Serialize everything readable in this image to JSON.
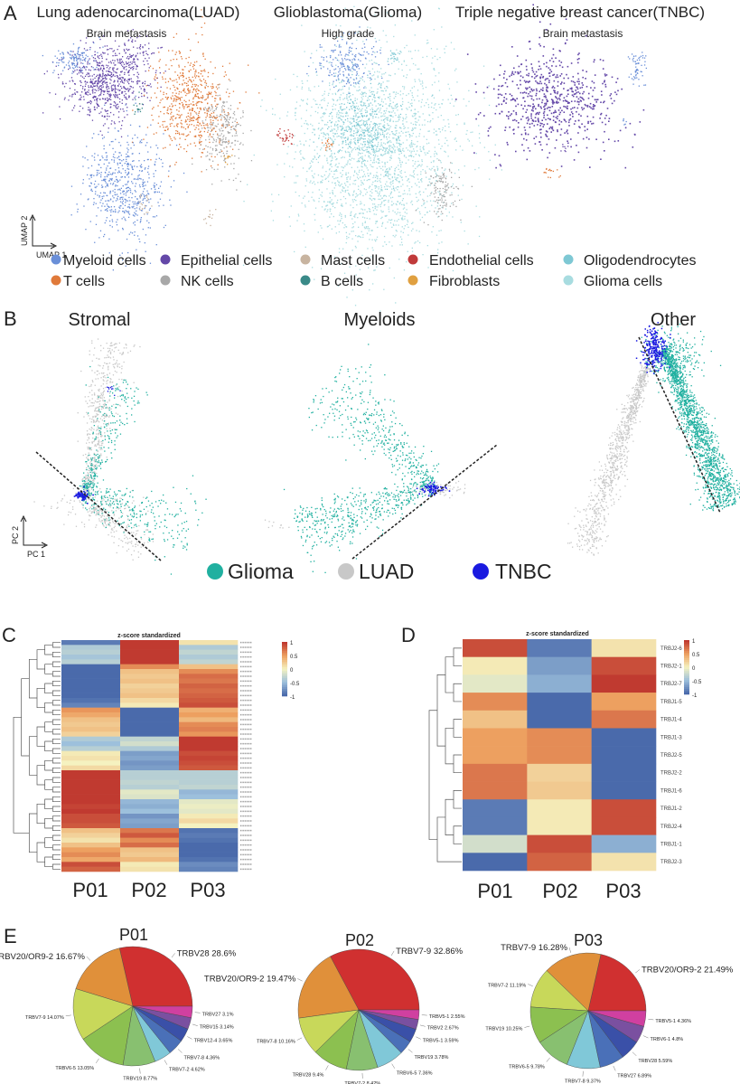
{
  "panelA": {
    "label": "A",
    "titles": [
      {
        "title": "Lung adenocarcinoma(LUAD)",
        "subtitle": "Brain metastasis"
      },
      {
        "title": "Glioblastoma(Glioma)",
        "subtitle": "High grade"
      },
      {
        "title": "Triple negative breast cancer(TNBC)",
        "subtitle": "Brain metastasis"
      }
    ],
    "axis_x": "UMAP 1",
    "axis_y": "UMAP 2",
    "legend": [
      {
        "label": "Myeloid cells",
        "color": "#6a8fd8"
      },
      {
        "label": "Epithelial cells",
        "color": "#6448a8"
      },
      {
        "label": "Mast cells",
        "color": "#c8b4a0"
      },
      {
        "label": "Endothelial cells",
        "color": "#c03a3a"
      },
      {
        "label": "Oligodendrocytes",
        "color": "#7ec8d4"
      },
      {
        "label": "T cells",
        "color": "#e07a3a"
      },
      {
        "label": "NK cells",
        "color": "#a8a8a8"
      },
      {
        "label": "B cells",
        "color": "#3a8a88"
      },
      {
        "label": "Fibroblasts",
        "color": "#e0a040"
      },
      {
        "label": "Glioma cells",
        "color": "#a8dce0"
      }
    ]
  },
  "panelB": {
    "label": "B",
    "titles": [
      "Stromal",
      "Myeloids",
      "Other"
    ],
    "axis_x": "PC 1",
    "axis_y": "PC 2",
    "legend": [
      {
        "label": "Glioma",
        "color": "#20b0a0"
      },
      {
        "label": "LUAD",
        "color": "#c8c8c8"
      },
      {
        "label": "TNBC",
        "color": "#1a1ae0"
      }
    ]
  },
  "chart_data": [
    {
      "panel": "C",
      "type": "heatmap",
      "title": "z-score standardized",
      "columns": [
        "P01",
        "P02",
        "P03"
      ],
      "colorbar_ticks": [
        "1",
        "0.5",
        "0",
        "-0.5",
        "-1"
      ],
      "values": [
        [
          -0.9,
          1,
          0.1
        ],
        [
          -0.4,
          1,
          -0.4
        ],
        [
          -0.35,
          1,
          -0.3
        ],
        [
          -0.45,
          1,
          -0.4
        ],
        [
          -0.35,
          1,
          -0.3
        ],
        [
          -1,
          0.6,
          0.3
        ],
        [
          -1,
          0.3,
          0.6
        ],
        [
          -1,
          0.25,
          0.75
        ],
        [
          -1,
          0.3,
          0.7
        ],
        [
          -1,
          0.2,
          0.8
        ],
        [
          -1,
          0.25,
          0.75
        ],
        [
          -1,
          0.3,
          0.8
        ],
        [
          -0.95,
          0.15,
          0.85
        ],
        [
          -0.85,
          0.05,
          0.9
        ],
        [
          0.55,
          -1,
          0.4
        ],
        [
          0.45,
          -1,
          0.5
        ],
        [
          0.3,
          -1,
          0.35
        ],
        [
          0.25,
          -1,
          0.6
        ],
        [
          0.3,
          -1,
          0.65
        ],
        [
          0.2,
          -1,
          0.55
        ],
        [
          -0.4,
          -0.3,
          1
        ],
        [
          -0.5,
          -0.2,
          1
        ],
        [
          -0.35,
          -0.4,
          1
        ],
        [
          0.05,
          -0.7,
          0.9
        ],
        [
          0.1,
          -0.65,
          0.95
        ],
        [
          0.0,
          -0.75,
          0.9
        ],
        [
          0.15,
          -0.7,
          0.85
        ],
        [
          1,
          -0.35,
          -0.35
        ],
        [
          1,
          -0.35,
          -0.35
        ],
        [
          1,
          -0.3,
          -0.35
        ],
        [
          1,
          -0.35,
          -0.3
        ],
        [
          1,
          -0.1,
          -0.55
        ],
        [
          1,
          -0.15,
          -0.5
        ],
        [
          1,
          -0.55,
          -0.1
        ],
        [
          0.95,
          -0.6,
          -0.05
        ],
        [
          1,
          -0.5,
          -0.1
        ],
        [
          0.9,
          -0.75,
          0.05
        ],
        [
          0.9,
          -0.65,
          0.15
        ],
        [
          0.85,
          -0.7,
          0.0
        ],
        [
          0.3,
          0.7,
          -0.95
        ],
        [
          0.2,
          0.85,
          -0.9
        ],
        [
          0.1,
          0.6,
          -0.95
        ],
        [
          0.3,
          0.75,
          -1
        ],
        [
          0.5,
          0.3,
          -1
        ],
        [
          0.6,
          0.25,
          -1
        ],
        [
          0.45,
          0.35,
          -0.95
        ],
        [
          0.9,
          0.05,
          -0.8
        ],
        [
          0.8,
          0.1,
          -0.85
        ]
      ]
    },
    {
      "panel": "D",
      "type": "heatmap",
      "title": "z-score standardized",
      "columns": [
        "P01",
        "P02",
        "P03"
      ],
      "rows": [
        "TRBJ2-6",
        "TRBJ2-1",
        "TRBJ2-7",
        "TRBJ1-5",
        "TRBJ1-4",
        "TRBJ1-3",
        "TRBJ2-5",
        "TRBJ2-2",
        "TRBJ1-6",
        "TRBJ1-2",
        "TRBJ2-4",
        "TRBJ1-1",
        "TRBJ2-3"
      ],
      "colorbar_ticks": [
        "1",
        "0.5",
        "0",
        "-0.5",
        "-1"
      ],
      "values": [
        [
          0.9,
          -0.9,
          0.1
        ],
        [
          0.05,
          -0.7,
          0.9
        ],
        [
          -0.1,
          -0.6,
          1
        ],
        [
          0.6,
          -1,
          0.5
        ],
        [
          0.3,
          -1,
          0.7
        ],
        [
          0.5,
          0.6,
          -1
        ],
        [
          0.5,
          0.6,
          -1
        ],
        [
          0.7,
          0.2,
          -1
        ],
        [
          0.7,
          0.25,
          -1
        ],
        [
          -0.9,
          0.05,
          0.9
        ],
        [
          -0.9,
          0.05,
          0.9
        ],
        [
          -0.2,
          0.9,
          -0.6
        ],
        [
          -1,
          0.8,
          0.1
        ]
      ]
    },
    {
      "panel": "E",
      "type": "pie",
      "title": "P01",
      "slices": [
        {
          "label": "TRBV28",
          "value": 28.6
        },
        {
          "label": "TRBV20/OR9-2",
          "value": 16.67
        },
        {
          "label": "TRBV7-9",
          "value": 14.07
        },
        {
          "label": "TRBV6-5",
          "value": 13.05
        },
        {
          "label": "TRBV19",
          "value": 8.77
        },
        {
          "label": "TRBV7-2",
          "value": 4.62
        },
        {
          "label": "TRBV7-8",
          "value": 4.36
        },
        {
          "label": "TRBV12-4",
          "value": 3.65
        },
        {
          "label": "TRBV15",
          "value": 3.14
        },
        {
          "label": "TRBV27",
          "value": 3.1
        }
      ]
    },
    {
      "panel": "E",
      "type": "pie",
      "title": "P02",
      "slices": [
        {
          "label": "TRBV7-9",
          "value": 32.86
        },
        {
          "label": "TRBV20/OR9-2",
          "value": 19.47
        },
        {
          "label": "TRBV7-8",
          "value": 10.16
        },
        {
          "label": "TRBV28",
          "value": 9.4
        },
        {
          "label": "TRBV7-2",
          "value": 8.42
        },
        {
          "label": "TRBV6-5",
          "value": 7.36
        },
        {
          "label": "TRBV19",
          "value": 3.78
        },
        {
          "label": "TRBV5-1",
          "value": 3.59
        },
        {
          "label": "TRBV2",
          "value": 2.67
        },
        {
          "label": "TRBV5-1",
          "value": 2.55
        }
      ]
    },
    {
      "panel": "E",
      "type": "pie",
      "title": "P03",
      "slices": [
        {
          "label": "TRBV20/OR9-2",
          "value": 21.49
        },
        {
          "label": "TRBV7-9",
          "value": 16.28
        },
        {
          "label": "TRBV7-2",
          "value": 11.19
        },
        {
          "label": "TRBV19",
          "value": 10.25
        },
        {
          "label": "TRBV6-5",
          "value": 9.78
        },
        {
          "label": "TRBV7-8",
          "value": 9.37
        },
        {
          "label": "TRBV27",
          "value": 6.89
        },
        {
          "label": "TRBV28",
          "value": 5.59
        },
        {
          "label": "TRBV6-1",
          "value": 4.8
        },
        {
          "label": "TRBV5-1",
          "value": 4.36
        }
      ]
    }
  ],
  "panelC_label": "C",
  "panelD_label": "D",
  "panelE_label": "E",
  "pie_colors": [
    "#d03030",
    "#e0903a",
    "#c8d85a",
    "#8cc050",
    "#88c070",
    "#80c8d8",
    "#4a70b8",
    "#3a50a8",
    "#7a50a0",
    "#d040a0"
  ],
  "heatmap_scale": [
    "#4a6aab",
    "#9dc0dc",
    "#f5f2c0",
    "#eda060",
    "#c03a30"
  ]
}
